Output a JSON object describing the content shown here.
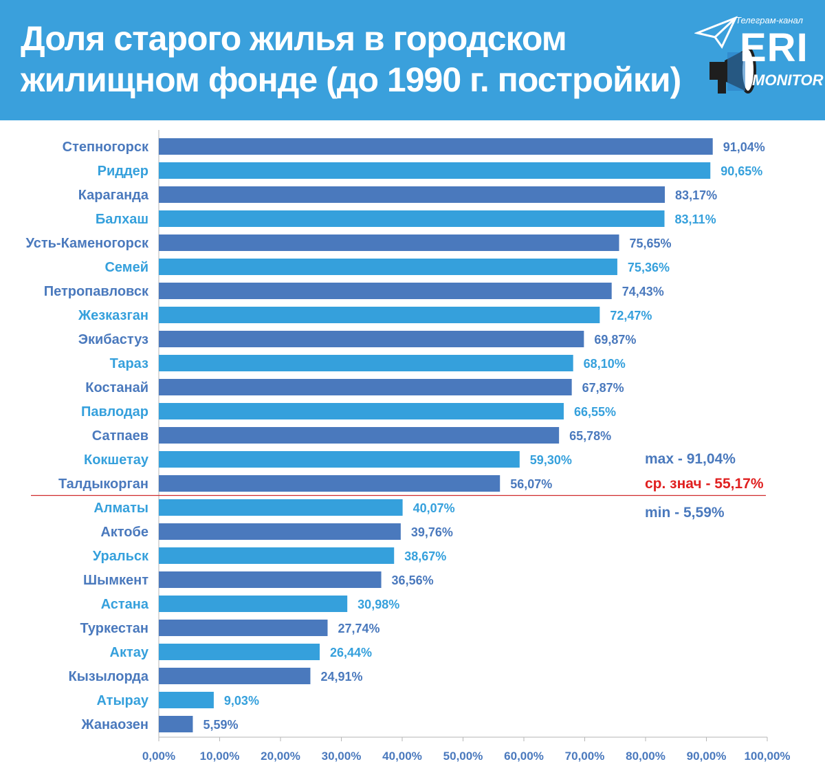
{
  "header": {
    "title_line1": "Доля старого жилья в городском",
    "title_line2": "жилищном фонде (до 1990 г. постройки)"
  },
  "logo": {
    "small_text": "Телеграм-канал",
    "big_text": "ERI",
    "sub_text": "MONITOR",
    "icons": [
      "telegram-plane-icon",
      "megaphone-icon"
    ]
  },
  "colors": {
    "header_bg": "#3aa0dc",
    "bar_dark": "#4a79bd",
    "bar_light": "#35a0dc",
    "avg_line": "#d0292b",
    "avg_text": "#e02020"
  },
  "stats": {
    "max": "max - 91,04%",
    "avg": "ср. знач - 55,17%",
    "min": "min - 5,59%"
  },
  "chart_data": {
    "type": "bar",
    "orientation": "horizontal",
    "title": "Доля старого жилья в городском жилищном фонде (до 1990 г. постройки)",
    "categories": [
      "Степногорск",
      "Риддер",
      "Караганда",
      "Балхаш",
      "Усть-Каменогорск",
      "Семей",
      "Петропавловск",
      "Жезказган",
      "Экибастуз",
      "Тараз",
      "Костанай",
      "Павлодар",
      "Сатпаев",
      "Кокшетау",
      "Талдыкорган",
      "Алматы",
      "Актобе",
      "Уральск",
      "Шымкент",
      "Астана",
      "Туркестан",
      "Актау",
      "Кызылорда",
      "Атырау",
      "Жанаозен"
    ],
    "values": [
      91.04,
      90.65,
      83.17,
      83.11,
      75.65,
      75.36,
      74.43,
      72.47,
      69.87,
      68.1,
      67.87,
      66.55,
      65.78,
      59.3,
      56.07,
      40.07,
      39.76,
      38.67,
      36.56,
      30.98,
      27.74,
      26.44,
      24.91,
      9.03,
      5.59
    ],
    "value_labels": [
      "91,04%",
      "90,65%",
      "83,17%",
      "83,11%",
      "75,65%",
      "75,36%",
      "74,43%",
      "72,47%",
      "69,87%",
      "68,10%",
      "67,87%",
      "66,55%",
      "65,78%",
      "59,30%",
      "56,07%",
      "40,07%",
      "39,76%",
      "38,67%",
      "36,56%",
      "30,98%",
      "27,74%",
      "26,44%",
      "24,91%",
      "9,03%",
      "5,59%"
    ],
    "xlim": [
      0,
      100
    ],
    "x_ticks": [
      "0,00%",
      "10,00%",
      "20,00%",
      "30,00%",
      "40,00%",
      "50,00%",
      "60,00%",
      "70,00%",
      "80,00%",
      "90,00%",
      "100,00%"
    ],
    "average": 55.17,
    "grid": false,
    "legend": "none"
  }
}
